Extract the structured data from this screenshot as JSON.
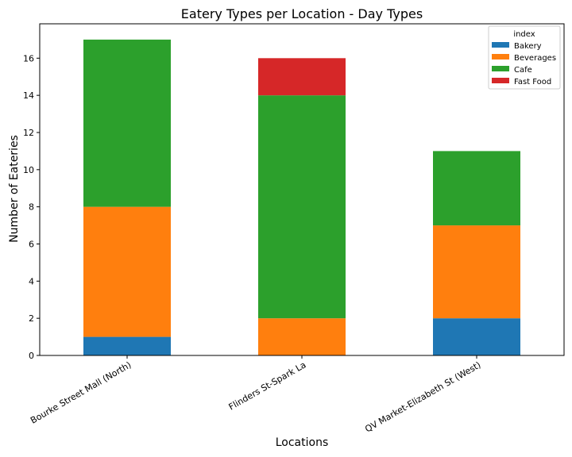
{
  "chart_data": {
    "type": "bar",
    "stacked": true,
    "title": "Eatery Types per Location - Day Types",
    "xlabel": "Locations",
    "ylabel": "Number of Eateries",
    "categories": [
      "Bourke Street Mall (North)",
      "Flinders St-Spark La",
      "QV Market-Elizabeth St (West)"
    ],
    "series": [
      {
        "name": "Bakery",
        "values": [
          1,
          0,
          2
        ],
        "color": "#1f77b4"
      },
      {
        "name": "Beverages",
        "values": [
          7,
          2,
          5
        ],
        "color": "#ff7f0e"
      },
      {
        "name": "Cafe",
        "values": [
          9,
          12,
          4
        ],
        "color": "#2ca02c"
      },
      {
        "name": "Fast Food",
        "values": [
          0,
          2,
          0
        ],
        "color": "#d62728"
      }
    ],
    "ylim": [
      0,
      17.85
    ],
    "yticks": [
      0,
      2,
      4,
      6,
      8,
      10,
      12,
      14,
      16
    ],
    "legend": {
      "title": "index",
      "placement": "top-right"
    },
    "grid": false
  }
}
